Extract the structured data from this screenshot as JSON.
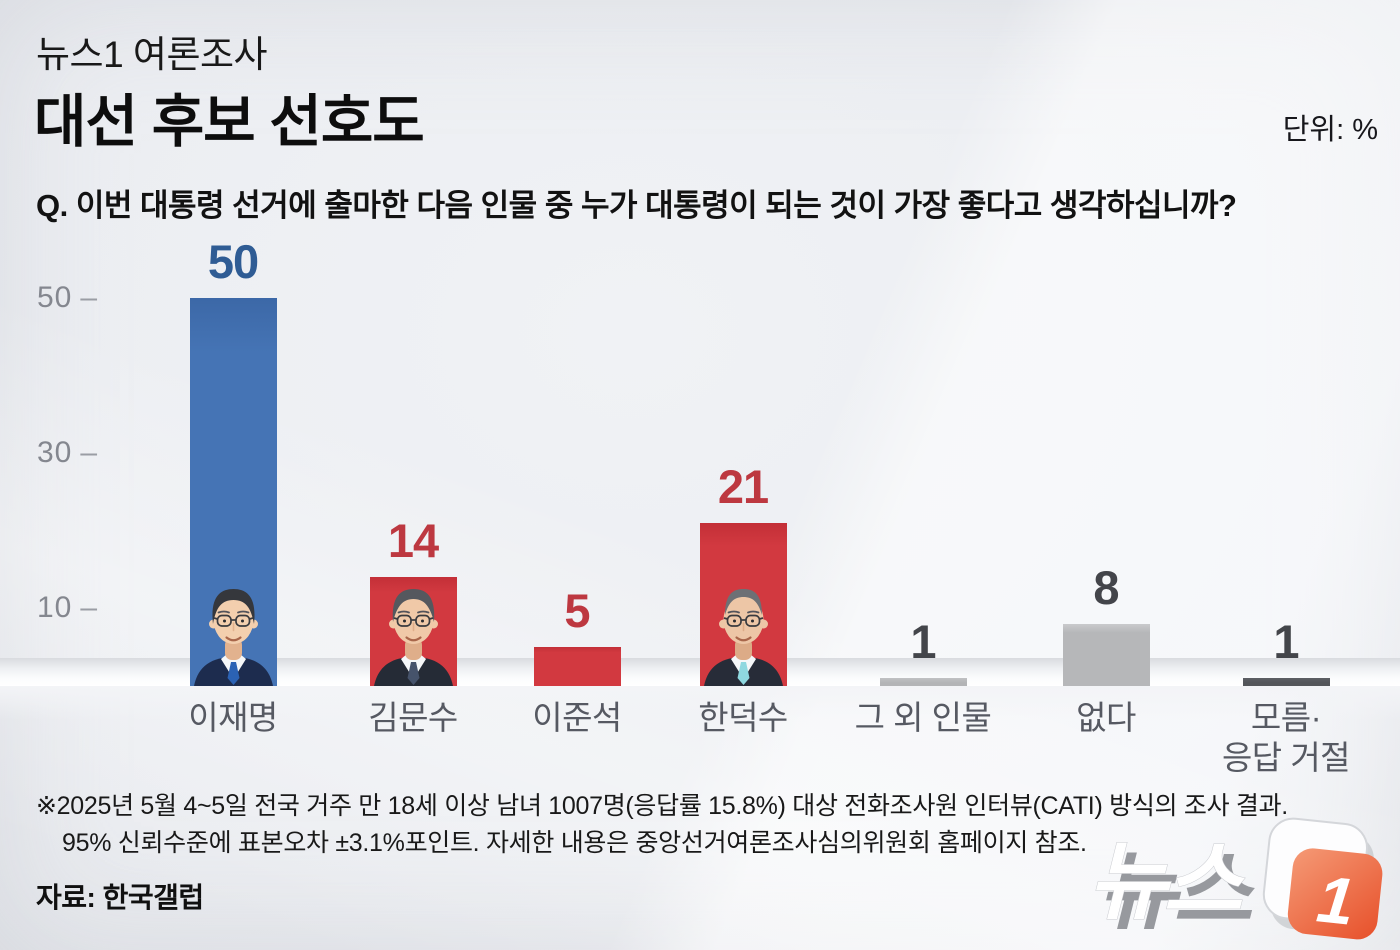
{
  "meta": {
    "unit_label": "단위: %"
  },
  "header": {
    "kicker": "뉴스1 여론조사",
    "title": "대선 후보 선호도",
    "question": "Q. 이번 대통령 선거에 출마한 다음 인물 중 누가 대통령이 되는 것이 가장 좋다고 생각하십니까?"
  },
  "chart_data": {
    "type": "bar",
    "title": "대선 후보 선호도",
    "unit": "%",
    "categories": [
      "이재명",
      "김문수",
      "이준석",
      "한덕수",
      "그 외 인물",
      "없다",
      "모름·\n응답 거절"
    ],
    "values": [
      50,
      14,
      5,
      21,
      1,
      8,
      1
    ],
    "yticks": [
      50,
      30,
      10
    ],
    "ylim": [
      0,
      55
    ],
    "grid": false,
    "legend": "none",
    "bar_styles": [
      {
        "fill": "#4574b5",
        "fill_top": "#3c68a7",
        "label_color": "#2f5c94",
        "portrait": "ljm"
      },
      {
        "fill": "#d23940",
        "fill_top": "#c32f37",
        "label_color": "#bd3840",
        "portrait": "kms"
      },
      {
        "fill": "#d23940",
        "fill_top": "#c32f37",
        "label_color": "#bd3840",
        "portrait": null
      },
      {
        "fill": "#d23940",
        "fill_top": "#c32f37",
        "label_color": "#bd3840",
        "portrait": "hds"
      },
      {
        "fill": "#b3b4b6",
        "fill_top": "#c0c1c3",
        "label_color": "#43454a",
        "portrait": null
      },
      {
        "fill": "#b6b7b9",
        "fill_top": "#c9cacc",
        "label_color": "#43454a",
        "portrait": null
      },
      {
        "fill": "#54565a",
        "fill_top": "#5d5f64",
        "label_color": "#43454a",
        "portrait": null
      }
    ],
    "portraits": {
      "ljm": {
        "suit": "#1d2c4e",
        "shirt": "#f5f7f9",
        "tie": "#2b62b4",
        "hair": "#35373c",
        "skin": "#f3cfae",
        "skin_shadow": "#e2b28e"
      },
      "kms": {
        "suit": "#252b36",
        "shirt": "#f5f7f9",
        "tie": "#46536b",
        "hair": "#55585e",
        "skin": "#f0c9a8",
        "skin_shadow": "#dfae8a"
      },
      "hds": {
        "suit": "#272c38",
        "shirt": "#f5f7f9",
        "tie": "#8fd8e0",
        "hair": "#6d7075",
        "skin": "#edc6a6",
        "skin_shadow": "#dcab87"
      }
    }
  },
  "colors": {
    "background": "#eceef2",
    "axis_tick": "#84878f",
    "category_label": "#565962",
    "bar_blue": "#4574b5",
    "bar_red": "#d23940",
    "bar_gray_light": "#b5b6b8",
    "bar_gray_dark": "#54565a",
    "logo_orange": "#ea5a33"
  },
  "footer": {
    "note_line1": "※2025년 5월 4~5일 전국 거주 만 18세 이상 남녀 1007명(응답률 15.8%) 대상 전화조사원 인터뷰(CATI) 방식의 조사 결과.",
    "note_line2": "95% 신뢰수준에 표본오차 ±3.1%포인트. 자세한 내용은 중앙선거여론조사심의위원회 홈페이지 참조.",
    "source": "자료: 한국갤럽",
    "logo_text": "뉴스",
    "logo_number": "1"
  }
}
